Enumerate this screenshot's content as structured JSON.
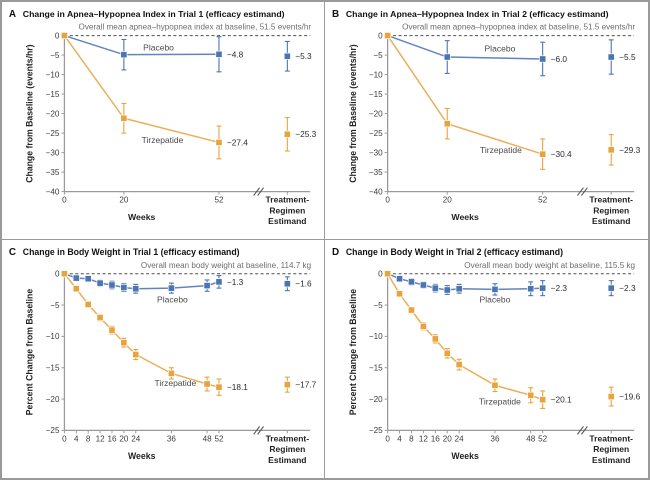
{
  "figure_name": "Tirzepatide trials: apnea-hypopnea index and body weight change",
  "colors": {
    "placebo": "#4a74b4",
    "tirzepatide": "#e8a33d",
    "axis": "#9a9a9a",
    "subtitle": "#6e6e6e",
    "text": "#2b2b2b"
  },
  "chart_data": [
    {
      "type": "line",
      "letter": "A",
      "title": "Change in Apnea–Hypopnea Index in Trial 1 (efficacy estimand)",
      "subtitle": "Overall mean apnea–hypopnea index at baseline, 51.5 events/hr",
      "xlabel": "Weeks",
      "ylabel": "Change from Baseline (events/hr)",
      "estimand_axis_label": [
        "Treatment-",
        "Regimen",
        "Estimand"
      ],
      "ylim": [
        -40,
        0
      ],
      "yticks": [
        0,
        -5,
        -10,
        -15,
        -20,
        -25,
        -30,
        -35,
        -40
      ],
      "xticks": [
        0,
        20,
        52
      ],
      "series": [
        {
          "name": "Placebo",
          "color": "#4a74b4",
          "x": [
            0,
            20,
            52
          ],
          "y": [
            0,
            -4.9,
            -4.8
          ],
          "err": [
            0,
            3.9,
            4.5
          ],
          "end_label": "−4.8",
          "estimand": {
            "y": -5.3,
            "err": 3.8,
            "label": "−5.3"
          }
        },
        {
          "name": "Tirzepatide",
          "color": "#e8a33d",
          "x": [
            0,
            20,
            52
          ],
          "y": [
            0,
            -21.2,
            -27.4
          ],
          "err": [
            0,
            3.8,
            4.2
          ],
          "end_label": "−27.4",
          "estimand": {
            "y": -25.3,
            "err": 4.3,
            "label": "−25.3"
          }
        }
      ]
    },
    {
      "type": "line",
      "letter": "B",
      "title": "Change in Apnea–Hypopnea Index in Trial 2 (efficacy estimand)",
      "subtitle": "Overall mean apnea–hypopnea index at baseline, 51.5 events/hr",
      "xlabel": "Weeks",
      "ylabel": "Change from Baseline (events/hr)",
      "estimand_axis_label": [
        "Treatment-",
        "Regimen",
        "Estimand"
      ],
      "ylim": [
        -40,
        0
      ],
      "yticks": [
        0,
        -5,
        -10,
        -15,
        -20,
        -25,
        -30,
        -35,
        -40
      ],
      "xticks": [
        0,
        20,
        52
      ],
      "series": [
        {
          "name": "Placebo",
          "color": "#4a74b4",
          "x": [
            0,
            20,
            52
          ],
          "y": [
            0,
            -5.5,
            -6.0
          ],
          "err": [
            0,
            4.2,
            4.3
          ],
          "end_label": "−6.0",
          "estimand": {
            "y": -5.5,
            "err": 4.4,
            "label": "−5.5"
          }
        },
        {
          "name": "Tirzepatide",
          "color": "#e8a33d",
          "x": [
            0,
            20,
            52
          ],
          "y": [
            0,
            -22.6,
            -30.4
          ],
          "err": [
            0,
            3.9,
            3.9
          ],
          "end_label": "−30.4",
          "estimand": {
            "y": -29.3,
            "err": 3.9,
            "label": "−29.3"
          }
        }
      ]
    },
    {
      "type": "line",
      "letter": "C",
      "title": "Change in Body Weight in Trial 1 (efficacy estimand)",
      "subtitle": "Overall mean body weight at baseline, 114.7 kg",
      "xlabel": "Weeks",
      "ylabel": "Percent Change from Baseline",
      "estimand_axis_label": [
        "Treatment-",
        "Regimen",
        "Estimand"
      ],
      "ylim": [
        -25,
        0
      ],
      "yticks": [
        0,
        -5,
        -10,
        -15,
        -20,
        -25
      ],
      "xticks": [
        0,
        4,
        8,
        12,
        16,
        20,
        24,
        36,
        48,
        52
      ],
      "series": [
        {
          "name": "Placebo",
          "color": "#4a74b4",
          "x": [
            0,
            4,
            8,
            12,
            16,
            20,
            24,
            36,
            48,
            52
          ],
          "y": [
            0,
            -0.7,
            -0.8,
            -1.5,
            -1.8,
            -2.2,
            -2.4,
            -2.3,
            -1.9,
            -1.3
          ],
          "err": [
            0,
            0.4,
            0.4,
            0.5,
            0.6,
            0.6,
            0.7,
            0.8,
            0.9,
            1.0
          ],
          "end_label": "−1.3",
          "estimand": {
            "y": -1.6,
            "err": 1.1,
            "label": "−1.6"
          }
        },
        {
          "name": "Tirzepatide",
          "color": "#e8a33d",
          "x": [
            0,
            4,
            8,
            12,
            16,
            20,
            24,
            36,
            48,
            52
          ],
          "y": [
            0,
            -2.4,
            -4.9,
            -7.0,
            -9.0,
            -11.0,
            -12.9,
            -15.9,
            -17.6,
            -18.1
          ],
          "err": [
            0,
            0.3,
            0.4,
            0.5,
            0.6,
            0.7,
            0.8,
            0.9,
            1.1,
            1.3
          ],
          "end_label": "−18.1",
          "estimand": {
            "y": -17.7,
            "err": 1.2,
            "label": "−17.7"
          }
        }
      ]
    },
    {
      "type": "line",
      "letter": "D",
      "title": "Change in Body Weight in Trial 2 (efficacy estimand)",
      "subtitle": "Overall mean body weight at baseline, 115.5 kg",
      "xlabel": "Weeks",
      "ylabel": "Percent Change from Baseline",
      "estimand_axis_label": [
        "Treatment-",
        "Regimen",
        "Estimand"
      ],
      "ylim": [
        -25,
        0
      ],
      "yticks": [
        0,
        -5,
        -10,
        -15,
        -20,
        -25
      ],
      "xticks": [
        0,
        4,
        8,
        12,
        16,
        20,
        24,
        36,
        48,
        52
      ],
      "series": [
        {
          "name": "Placebo",
          "color": "#4a74b4",
          "x": [
            0,
            4,
            8,
            12,
            16,
            20,
            24,
            36,
            48,
            52
          ],
          "y": [
            0,
            -0.8,
            -1.3,
            -1.8,
            -2.3,
            -2.6,
            -2.4,
            -2.5,
            -2.4,
            -2.3
          ],
          "err": [
            0,
            0.4,
            0.5,
            0.5,
            0.6,
            0.7,
            0.7,
            0.9,
            1.1,
            1.2
          ],
          "end_label": "−2.3",
          "estimand": {
            "y": -2.3,
            "err": 1.2,
            "label": "−2.3"
          }
        },
        {
          "name": "Tirzepatide",
          "color": "#e8a33d",
          "x": [
            0,
            4,
            8,
            12,
            16,
            20,
            24,
            36,
            48,
            52
          ],
          "y": [
            0,
            -3.2,
            -5.8,
            -8.4,
            -10.4,
            -12.7,
            -14.5,
            -17.8,
            -19.4,
            -20.1
          ],
          "err": [
            0,
            0.3,
            0.45,
            0.55,
            0.65,
            0.75,
            0.85,
            1.0,
            1.2,
            1.4
          ],
          "end_label": "−20.1",
          "estimand": {
            "y": -19.6,
            "err": 1.5,
            "label": "−19.6"
          }
        }
      ]
    }
  ]
}
